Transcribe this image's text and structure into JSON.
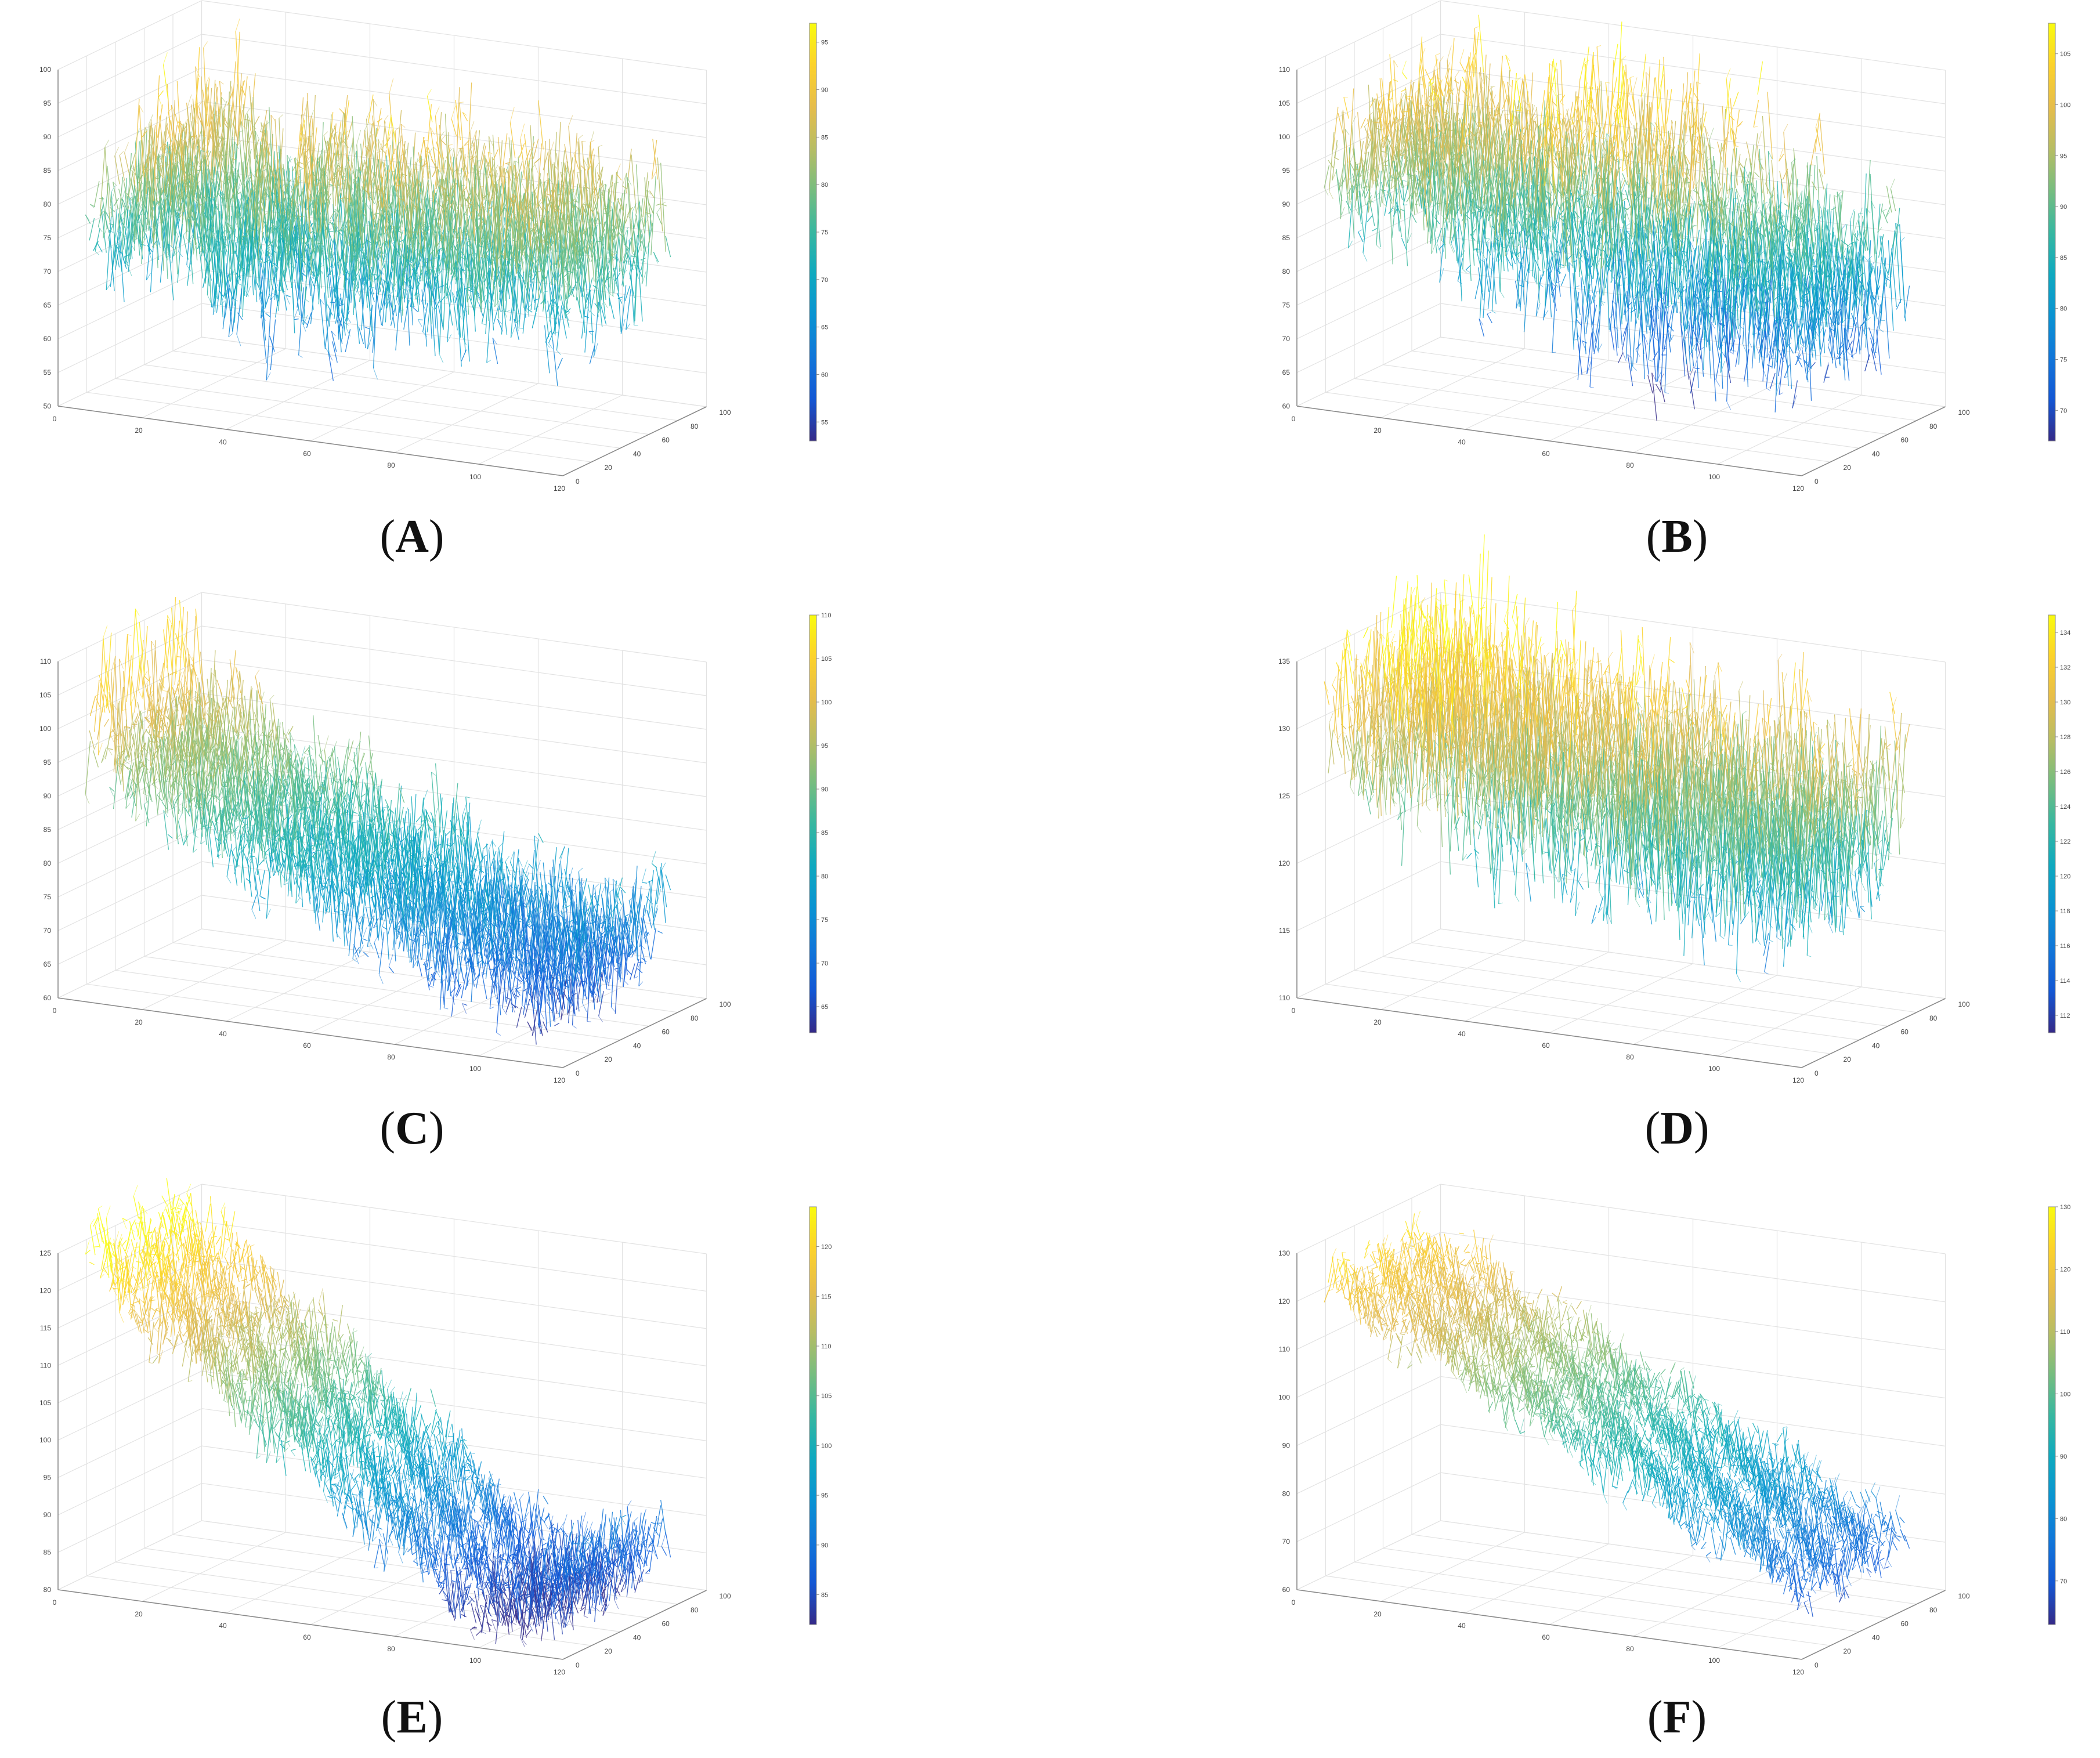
{
  "figure": {
    "description_labels": [
      "A",
      "B",
      "C",
      "D",
      "E",
      "F"
    ]
  },
  "chart_data": [
    {
      "type": "surface",
      "panel": "A",
      "caption_letter": "A",
      "x_ticks": [
        "0",
        "20",
        "40",
        "60",
        "80",
        "100",
        "120"
      ],
      "y_ticks": [
        "0",
        "20",
        "40",
        "60",
        "80",
        "100"
      ],
      "z_ticks": [
        "50",
        "55",
        "60",
        "65",
        "70",
        "75",
        "80",
        "85",
        "90",
        "95",
        "100"
      ],
      "zlim": [
        50,
        100
      ],
      "colorbar_ticks": [
        "55",
        "60",
        "65",
        "70",
        "75",
        "80",
        "85",
        "90",
        "95"
      ],
      "colorbar_range": [
        53,
        97
      ],
      "profile": [
        74,
        72,
        76,
        73,
        78,
        75,
        80,
        77,
        82,
        79,
        86,
        90,
        84,
        88,
        81,
        85,
        78,
        83,
        76,
        80,
        74,
        79,
        72,
        77,
        70,
        75,
        68,
        74,
        72,
        78,
        76,
        82,
        79,
        86,
        80,
        75,
        70,
        66,
        72,
        78,
        74,
        80,
        76,
        83,
        88,
        82,
        77,
        73,
        68,
        65,
        71,
        76,
        80,
        84,
        78,
        73,
        69,
        74,
        79,
        84,
        89,
        85,
        80,
        76,
        72,
        77,
        83,
        79,
        75,
        71,
        76,
        81,
        86,
        82,
        78,
        74,
        70,
        75,
        80,
        84,
        79,
        75,
        72,
        77,
        82,
        86,
        83,
        80,
        78,
        81,
        84,
        80,
        77,
        73,
        70,
        74,
        78,
        82,
        79,
        76
      ],
      "noise": 7,
      "color_min": 53,
      "color_max": 97
    },
    {
      "type": "surface",
      "panel": "B",
      "caption_letter": "B",
      "x_ticks": [
        "0",
        "20",
        "40",
        "60",
        "80",
        "100",
        "120"
      ],
      "y_ticks": [
        "0",
        "20",
        "40",
        "60",
        "80",
        "100"
      ],
      "z_ticks": [
        "60",
        "65",
        "70",
        "75",
        "80",
        "85",
        "90",
        "95",
        "100",
        "105",
        "110"
      ],
      "zlim": [
        60,
        110
      ],
      "colorbar_ticks": [
        "70",
        "75",
        "80",
        "85",
        "90",
        "95",
        "100",
        "105"
      ],
      "colorbar_range": [
        67,
        108
      ],
      "profile": [
        92,
        91,
        93,
        92,
        94,
        96,
        98,
        95,
        97,
        94,
        96,
        100,
        97,
        94,
        92,
        95,
        91,
        88,
        93,
        96,
        99,
        95,
        92,
        89,
        86,
        90,
        94,
        97,
        93,
        89,
        85,
        82,
        86,
        90,
        94,
        98,
        102,
        96,
        90,
        84,
        80,
        84,
        88,
        92,
        96,
        100,
        104,
        98,
        92,
        86,
        80,
        76,
        80,
        85,
        90,
        94,
        98,
        102,
        96,
        90,
        85,
        80,
        76,
        72,
        77,
        82,
        87,
        92,
        97,
        101,
        95,
        89,
        84,
        79,
        75,
        80,
        85,
        90,
        86,
        82,
        78,
        82,
        86,
        90,
        94,
        88,
        83,
        79,
        76,
        80,
        84,
        88,
        84,
        80,
        78,
        81,
        84,
        82,
        80,
        79
      ],
      "noise": 8,
      "color_min": 67,
      "color_max": 108
    },
    {
      "type": "surface",
      "panel": "C",
      "caption_letter": "C",
      "x_ticks": [
        "0",
        "20",
        "40",
        "60",
        "80",
        "100",
        "120"
      ],
      "y_ticks": [
        "0",
        "20",
        "40",
        "60",
        "80",
        "100"
      ],
      "z_ticks": [
        "60",
        "65",
        "70",
        "75",
        "80",
        "85",
        "90",
        "95",
        "100",
        "105",
        "110"
      ],
      "zlim": [
        60,
        110
      ],
      "colorbar_ticks": [
        "65",
        "70",
        "75",
        "80",
        "85",
        "90",
        "95",
        "100",
        "105",
        "110"
      ],
      "colorbar_range": [
        62,
        110
      ],
      "profile": [
        93,
        95,
        108,
        99,
        96,
        94,
        97,
        92,
        98,
        95,
        93,
        96,
        91,
        94,
        90,
        95,
        92,
        89,
        93,
        90,
        88,
        91,
        87,
        90,
        86,
        89,
        92,
        88,
        85,
        88,
        86,
        84,
        87,
        85,
        83,
        86,
        84,
        82,
        85,
        88,
        84,
        81,
        83,
        80,
        84,
        82,
        79,
        82,
        80,
        78,
        81,
        84,
        80,
        77,
        80,
        78,
        76,
        79,
        82,
        78,
        75,
        78,
        76,
        74,
        77,
        80,
        76,
        73,
        76,
        74,
        72,
        75,
        78,
        74,
        71,
        74,
        72,
        70,
        73,
        76,
        72,
        69,
        72,
        70,
        68,
        71,
        74,
        70,
        68,
        72,
        70,
        68,
        71,
        74,
        72,
        70,
        73,
        76,
        74,
        75
      ],
      "noise": 6,
      "color_min": 62,
      "color_max": 110
    },
    {
      "type": "surface",
      "panel": "D",
      "caption_letter": "D",
      "x_ticks": [
        "0",
        "20",
        "40",
        "60",
        "80",
        "100",
        "120"
      ],
      "y_ticks": [
        "0",
        "20",
        "40",
        "60",
        "80",
        "100"
      ],
      "z_ticks": [
        "110",
        "115",
        "120",
        "125",
        "130",
        "135"
      ],
      "zlim": [
        110,
        135
      ],
      "colorbar_ticks": [
        "112",
        "114",
        "116",
        "118",
        "120",
        "122",
        "124",
        "126",
        "128",
        "130",
        "132",
        "134"
      ],
      "colorbar_range": [
        111,
        135
      ],
      "profile": [
        129,
        130,
        128,
        131,
        129,
        132,
        130,
        128,
        131,
        133,
        130,
        128,
        131,
        134,
        130,
        127,
        129,
        132,
        130,
        128,
        126,
        129,
        131,
        133,
        129,
        126,
        128,
        130,
        127,
        125,
        128,
        131,
        129,
        126,
        124,
        127,
        130,
        132,
        128,
        125,
        127,
        129,
        126,
        124,
        127,
        130,
        128,
        125,
        123,
        126,
        129,
        131,
        127,
        124,
        126,
        128,
        125,
        123,
        126,
        129,
        127,
        124,
        122,
        125,
        128,
        130,
        126,
        123,
        125,
        127,
        124,
        122,
        125,
        128,
        126,
        123,
        121,
        124,
        127,
        129,
        125,
        122,
        124,
        126,
        123,
        121,
        124,
        127,
        125,
        122,
        124,
        126,
        124,
        122,
        125,
        127,
        126,
        124,
        126,
        127
      ],
      "noise": 5,
      "color_min": 111,
      "color_max": 135
    },
    {
      "type": "surface",
      "panel": "E",
      "caption_letter": "E",
      "x_ticks": [
        "0",
        "20",
        "40",
        "60",
        "80",
        "100",
        "120"
      ],
      "y_ticks": [
        "0",
        "20",
        "40",
        "60",
        "80",
        "100"
      ],
      "z_ticks": [
        "80",
        "85",
        "90",
        "95",
        "100",
        "105",
        "110",
        "115",
        "120",
        "125"
      ],
      "zlim": [
        80,
        125
      ],
      "colorbar_ticks": [
        "85",
        "90",
        "95",
        "100",
        "105",
        "110",
        "115",
        "120"
      ],
      "colorbar_range": [
        82,
        124
      ],
      "profile": [
        123,
        124,
        123,
        122,
        121,
        122,
        120,
        119,
        120,
        118,
        119,
        117,
        118,
        116,
        117,
        115,
        116,
        114,
        115,
        113,
        114,
        112,
        113,
        111,
        112,
        110,
        111,
        109,
        110,
        108,
        109,
        107,
        108,
        106,
        107,
        105,
        106,
        104,
        105,
        103,
        104,
        102,
        103,
        101,
        102,
        100,
        101,
        99,
        100,
        98,
        99,
        97,
        98,
        96,
        97,
        95,
        96,
        94,
        95,
        93,
        94,
        92,
        93,
        91,
        92,
        90,
        91,
        89,
        90,
        88,
        89,
        87,
        88,
        86,
        87,
        85,
        86,
        84,
        85,
        83,
        84,
        83,
        85,
        82,
        84,
        86,
        83,
        85,
        87,
        84,
        86,
        88,
        85,
        87,
        89,
        86,
        88,
        90,
        88,
        89
      ],
      "noise": 4,
      "color_min": 82,
      "color_max": 124
    },
    {
      "type": "surface",
      "panel": "F",
      "caption_letter": "F",
      "x_ticks": [
        "0",
        "20",
        "40",
        "60",
        "80",
        "100",
        "120"
      ],
      "y_ticks": [
        "0",
        "20",
        "40",
        "60",
        "80",
        "100"
      ],
      "z_ticks": [
        "60",
        "70",
        "80",
        "90",
        "100",
        "110",
        "120",
        "130"
      ],
      "zlim": [
        60,
        130
      ],
      "colorbar_ticks": [
        "70",
        "80",
        "90",
        "100",
        "110",
        "120",
        "130"
      ],
      "colorbar_range": [
        63,
        130
      ],
      "profile": [
        120,
        121,
        122,
        120,
        121,
        119,
        120,
        118,
        119,
        117,
        118,
        116,
        117,
        115,
        116,
        114,
        115,
        113,
        114,
        112,
        113,
        111,
        112,
        110,
        111,
        109,
        110,
        108,
        109,
        107,
        108,
        106,
        107,
        105,
        106,
        104,
        105,
        103,
        104,
        102,
        103,
        101,
        102,
        100,
        101,
        99,
        100,
        98,
        99,
        97,
        98,
        96,
        97,
        95,
        96,
        94,
        95,
        93,
        94,
        92,
        93,
        91,
        92,
        90,
        91,
        89,
        90,
        88,
        89,
        87,
        88,
        86,
        87,
        85,
        86,
        84,
        85,
        83,
        84,
        82,
        83,
        81,
        82,
        80,
        81,
        79,
        80,
        78,
        79,
        77,
        78,
        76,
        77,
        75,
        76,
        74,
        75,
        73,
        74,
        73
      ],
      "noise": 5,
      "color_min": 63,
      "color_max": 130
    }
  ]
}
